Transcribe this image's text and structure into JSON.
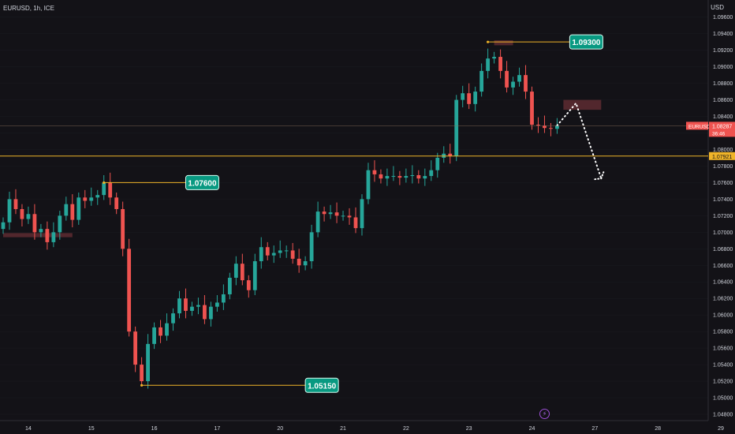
{
  "header": {
    "symbol": "EURUSD, 1h, ICE",
    "currency": "USD"
  },
  "ticker": {
    "symbol": "EURUSD",
    "price": "1.08287",
    "countdown": "36:46"
  },
  "level_line": {
    "value": 1.07921,
    "label": "1.07921",
    "color": "#f0b429"
  },
  "colors": {
    "up": "#26a69a",
    "down": "#ef5350",
    "callout": "#089981",
    "zone": "#5a2a30",
    "grid": "#2a2a33",
    "axis_text": "#d1d4dc"
  },
  "chart_data": {
    "type": "candlestick",
    "x_range": [
      0,
      112
    ],
    "ylim": [
      1.048,
      1.0975
    ],
    "y_ticks": [
      "1.09600",
      "1.09400",
      "1.09200",
      "1.09000",
      "1.08800",
      "1.08600",
      "1.08400",
      "1.08200",
      "1.08000",
      "1.07800",
      "1.07600",
      "1.07400",
      "1.07200",
      "1.07000",
      "1.06800",
      "1.06600",
      "1.06400",
      "1.06200",
      "1.06000",
      "1.05800",
      "1.05600",
      "1.05400",
      "1.05200",
      "1.05000",
      "1.04800"
    ],
    "x_ticks": [
      {
        "x": 4,
        "label": "14"
      },
      {
        "x": 14,
        "label": "15"
      },
      {
        "x": 24,
        "label": "16"
      },
      {
        "x": 34,
        "label": "17"
      },
      {
        "x": 44,
        "label": "20"
      },
      {
        "x": 54,
        "label": "21"
      },
      {
        "x": 64,
        "label": "22"
      },
      {
        "x": 74,
        "label": "23"
      },
      {
        "x": 84,
        "label": "24"
      },
      {
        "x": 94,
        "label": "27"
      },
      {
        "x": 104,
        "label": "28"
      },
      {
        "x": 114,
        "label": "29"
      }
    ],
    "series": [
      {
        "x": 0,
        "y": 1.0712
      },
      {
        "x": 1,
        "y": 1.074
      },
      {
        "x": 2,
        "y": 1.0728
      },
      {
        "x": 3,
        "y": 1.0716
      },
      {
        "x": 4,
        "y": 1.0722
      },
      {
        "x": 5,
        "y": 1.07
      },
      {
        "x": 6,
        "y": 1.0704
      },
      {
        "x": 7,
        "y": 1.0688
      },
      {
        "x": 8,
        "y": 1.07
      },
      {
        "x": 9,
        "y": 1.072
      },
      {
        "x": 10,
        "y": 1.0734
      },
      {
        "x": 11,
        "y": 1.0715
      },
      {
        "x": 12,
        "y": 1.0742
      },
      {
        "x": 13,
        "y": 1.0738
      },
      {
        "x": 14,
        "y": 1.0742
      },
      {
        "x": 15,
        "y": 1.0745
      },
      {
        "x": 16,
        "y": 1.076
      },
      {
        "x": 17,
        "y": 1.0742
      },
      {
        "x": 18,
        "y": 1.0728
      },
      {
        "x": 19,
        "y": 1.068
      },
      {
        "x": 20,
        "y": 1.058
      },
      {
        "x": 21,
        "y": 1.054
      },
      {
        "x": 22,
        "y": 1.052
      },
      {
        "x": 23,
        "y": 1.0565
      },
      {
        "x": 24,
        "y": 1.0585
      },
      {
        "x": 25,
        "y": 1.0575
      },
      {
        "x": 26,
        "y": 1.059
      },
      {
        "x": 27,
        "y": 1.0602
      },
      {
        "x": 28,
        "y": 1.062
      },
      {
        "x": 29,
        "y": 1.0605
      },
      {
        "x": 30,
        "y": 1.061
      },
      {
        "x": 31,
        "y": 1.0612
      },
      {
        "x": 32,
        "y": 1.0595
      },
      {
        "x": 33,
        "y": 1.061
      },
      {
        "x": 34,
        "y": 1.0615
      },
      {
        "x": 35,
        "y": 1.0625
      },
      {
        "x": 36,
        "y": 1.0645
      },
      {
        "x": 37,
        "y": 1.0662
      },
      {
        "x": 38,
        "y": 1.0642
      },
      {
        "x": 39,
        "y": 1.063
      },
      {
        "x": 40,
        "y": 1.0665
      },
      {
        "x": 41,
        "y": 1.0682
      },
      {
        "x": 42,
        "y": 1.0672
      },
      {
        "x": 43,
        "y": 1.0675
      },
      {
        "x": 44,
        "y": 1.0678
      },
      {
        "x": 45,
        "y": 1.0678
      },
      {
        "x": 46,
        "y": 1.0668
      },
      {
        "x": 47,
        "y": 1.066
      },
      {
        "x": 48,
        "y": 1.0665
      },
      {
        "x": 49,
        "y": 1.07
      },
      {
        "x": 50,
        "y": 1.0725
      },
      {
        "x": 51,
        "y": 1.0722
      },
      {
        "x": 52,
        "y": 1.0724
      },
      {
        "x": 53,
        "y": 1.072
      },
      {
        "x": 54,
        "y": 1.072
      },
      {
        "x": 55,
        "y": 1.0718
      },
      {
        "x": 56,
        "y": 1.0705
      },
      {
        "x": 57,
        "y": 1.074
      },
      {
        "x": 58,
        "y": 1.0775
      },
      {
        "x": 59,
        "y": 1.077
      },
      {
        "x": 60,
        "y": 1.0765
      },
      {
        "x": 61,
        "y": 1.0768
      },
      {
        "x": 62,
        "y": 1.0768
      },
      {
        "x": 63,
        "y": 1.0766
      },
      {
        "x": 64,
        "y": 1.0768
      },
      {
        "x": 65,
        "y": 1.0769
      },
      {
        "x": 66,
        "y": 1.0765
      },
      {
        "x": 67,
        "y": 1.0768
      },
      {
        "x": 68,
        "y": 1.0775
      },
      {
        "x": 69,
        "y": 1.079
      },
      {
        "x": 70,
        "y": 1.0795
      },
      {
        "x": 71,
        "y": 1.0792
      },
      {
        "x": 72,
        "y": 1.086
      },
      {
        "x": 73,
        "y": 1.0868
      },
      {
        "x": 74,
        "y": 1.0855
      },
      {
        "x": 75,
        "y": 1.087
      },
      {
        "x": 76,
        "y": 1.0895
      },
      {
        "x": 77,
        "y": 1.091
      },
      {
        "x": 78,
        "y": 1.0912
      },
      {
        "x": 79,
        "y": 1.0895
      },
      {
        "x": 80,
        "y": 1.0875
      },
      {
        "x": 81,
        "y": 1.0882
      },
      {
        "x": 82,
        "y": 1.089
      },
      {
        "x": 83,
        "y": 1.087
      },
      {
        "x": 84,
        "y": 1.083
      },
      {
        "x": 85,
        "y": 1.0829
      },
      {
        "x": 86,
        "y": 1.0826
      },
      {
        "x": 87,
        "y": 1.0825
      },
      {
        "x": 88,
        "y": 1.0829
      }
    ],
    "callouts": [
      {
        "label": "1.07600",
        "x_start": 16,
        "x_end": 29,
        "y": 1.076
      },
      {
        "label": "1.05150",
        "x_start": 22,
        "x_end": 48,
        "y": 1.0515
      },
      {
        "label": "1.09300",
        "x_start": 77,
        "x_end": 90,
        "y": 1.093
      }
    ],
    "zones": [
      {
        "x_start": 0,
        "x_end": 11,
        "y_low": 1.0694,
        "y_high": 1.0699
      },
      {
        "x_start": 78,
        "x_end": 81,
        "y_low": 1.0926,
        "y_high": 1.0932
      },
      {
        "x_start": 89,
        "x_end": 95,
        "y_low": 1.0848,
        "y_high": 1.086
      }
    ],
    "projection": [
      {
        "x": 88,
        "y": 1.0829
      },
      {
        "x": 91,
        "y": 1.0856
      },
      {
        "x": 95,
        "y": 1.0765
      }
    ]
  }
}
